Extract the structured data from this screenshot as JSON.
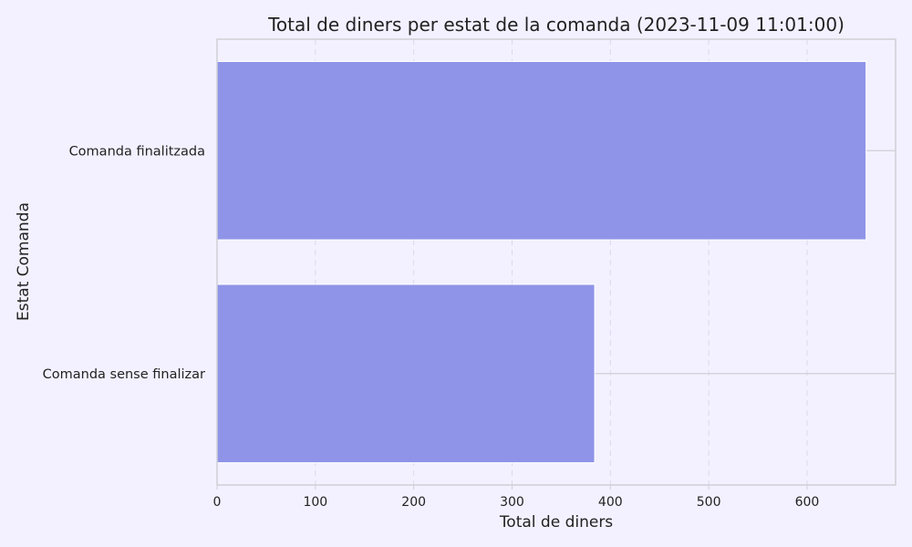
{
  "chart_data": {
    "type": "bar",
    "orientation": "horizontal",
    "title": "Total de diners per estat de la comanda (2023-11-09 11:01:00)",
    "xlabel": "Total de diners",
    "ylabel": "Estat Comanda",
    "categories": [
      "Comanda finalitzada",
      "Comanda sense finalizar"
    ],
    "values": [
      660,
      384
    ],
    "xlim": [
      0,
      690
    ],
    "xticks": [
      0,
      100,
      200,
      300,
      400,
      500,
      600
    ],
    "grid": "vertical dashed",
    "legend": "none",
    "colors": {
      "background": "#f3f1ff",
      "bar": "#8f94e8",
      "axis": "#cfcfd6",
      "grid": "#dcd8ec"
    }
  }
}
